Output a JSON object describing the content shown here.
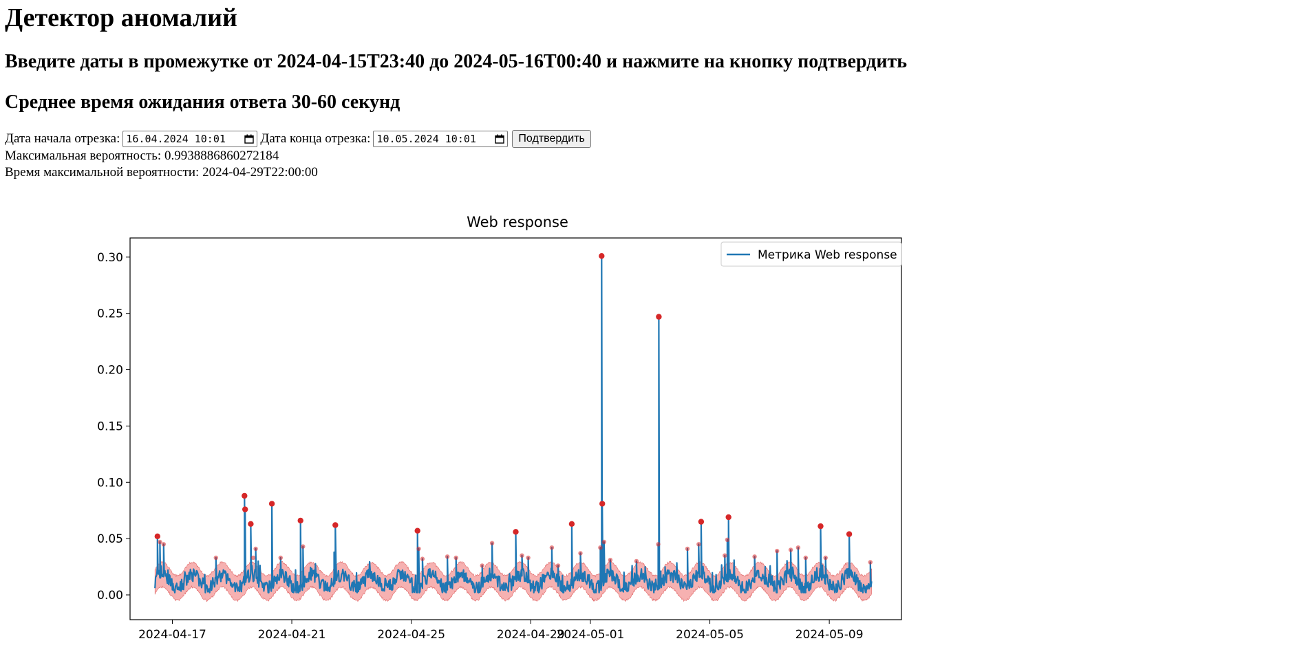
{
  "header": {
    "title": "Детектор аномалий",
    "subtitle": "Введите даты в промежутке от 2024-04-15T23:40 до 2024-05-16T00:40 и нажмите на кнопку подтвердить",
    "wait_note": "Среднее время ожидания ответа 30-60 секунд"
  },
  "form": {
    "start_label": "Дата начала отрезка:",
    "start_value": "16.04.2024 10:01",
    "end_label": "Дата конца отрезка:",
    "end_value": "10.05.2024 10:01",
    "submit_label": "Подтвердить"
  },
  "results": {
    "max_prob_label": "Максимальная вероятность:",
    "max_prob_value": "0.9938886860272184",
    "max_time_label": "Время максимальной вероятности:",
    "max_time_value": "2024-04-29T22:00:00"
  },
  "colors": {
    "line": "#1f77b4",
    "band": "#f4a3a3",
    "anomaly": "#d62728"
  },
  "chart_data": {
    "type": "line",
    "title": "Web response",
    "xlabel": "",
    "ylabel": "",
    "legend": {
      "entry": "Метрика Web response",
      "placement": "top-right"
    },
    "xlim": [
      "2024-04-15T14:00",
      "2024-05-11T10:00"
    ],
    "ylim": [
      -0.022,
      0.317
    ],
    "x_ticks": [
      "2024-04-17",
      "2024-04-21",
      "2024-04-25",
      "2024-04-29",
      "2024-05-01",
      "2024-05-05",
      "2024-05-09"
    ],
    "y_ticks": [
      "0.00",
      "0.05",
      "0.10",
      "0.15",
      "0.20",
      "0.25",
      "0.30"
    ],
    "series_range": [
      "2024-04-16T10:00",
      "2024-05-10T10:00"
    ],
    "baseline": {
      "mean": 0.012,
      "amplitude": 0.006,
      "period_days": 1,
      "band_half_width": 0.011
    },
    "spikes": [
      {
        "x": "2024-04-16T12:00",
        "y": 0.052
      },
      {
        "x": "2024-04-16T14:00",
        "y": 0.047
      },
      {
        "x": "2024-04-16T17:00",
        "y": 0.045
      },
      {
        "x": "2024-04-18T11:00",
        "y": 0.033
      },
      {
        "x": "2024-04-19T10:00",
        "y": 0.088
      },
      {
        "x": "2024-04-19T10:30",
        "y": 0.076
      },
      {
        "x": "2024-04-19T15:00",
        "y": 0.063
      },
      {
        "x": "2024-04-19T19:00",
        "y": 0.041
      },
      {
        "x": "2024-04-19T21:00",
        "y": 0.03
      },
      {
        "x": "2024-04-20T08:00",
        "y": 0.081
      },
      {
        "x": "2024-04-20T15:00",
        "y": 0.033
      },
      {
        "x": "2024-04-21T07:00",
        "y": 0.066
      },
      {
        "x": "2024-04-21T09:00",
        "y": 0.043
      },
      {
        "x": "2024-04-22T11:00",
        "y": 0.062
      },
      {
        "x": "2024-04-22T10:00",
        "y": 0.038
      },
      {
        "x": "2024-04-25T05:00",
        "y": 0.057
      },
      {
        "x": "2024-04-25T06:00",
        "y": 0.041
      },
      {
        "x": "2024-04-25T09:00",
        "y": 0.032
      },
      {
        "x": "2024-04-26T05:00",
        "y": 0.034
      },
      {
        "x": "2024-04-26T12:00",
        "y": 0.033
      },
      {
        "x": "2024-04-27T09:00",
        "y": 0.026
      },
      {
        "x": "2024-04-27T17:00",
        "y": 0.046
      },
      {
        "x": "2024-04-28T12:00",
        "y": 0.056
      },
      {
        "x": "2024-04-28T17:00",
        "y": 0.035
      },
      {
        "x": "2024-04-28T22:00",
        "y": 0.033
      },
      {
        "x": "2024-04-29T17:00",
        "y": 0.042
      },
      {
        "x": "2024-04-29T22:00",
        "y": 0.026
      },
      {
        "x": "2024-04-30T09:00",
        "y": 0.063
      },
      {
        "x": "2024-04-30T16:00",
        "y": 0.037
      },
      {
        "x": "2024-05-01T09:00",
        "y": 0.301
      },
      {
        "x": "2024-05-01T09:30",
        "y": 0.081
      },
      {
        "x": "2024-05-01T11:00",
        "y": 0.047
      },
      {
        "x": "2024-05-01T08:00",
        "y": 0.042
      },
      {
        "x": "2024-05-01T16:00",
        "y": 0.031
      },
      {
        "x": "2024-05-02T13:00",
        "y": 0.03
      },
      {
        "x": "2024-05-02T20:00",
        "y": 0.025
      },
      {
        "x": "2024-05-03T07:00",
        "y": 0.247
      },
      {
        "x": "2024-05-03T06:30",
        "y": 0.045
      },
      {
        "x": "2024-05-03T12:00",
        "y": 0.025
      },
      {
        "x": "2024-05-04T06:00",
        "y": 0.041
      },
      {
        "x": "2024-05-04T17:00",
        "y": 0.065
      },
      {
        "x": "2024-05-04T15:00",
        "y": 0.045
      },
      {
        "x": "2024-05-05T15:00",
        "y": 0.069
      },
      {
        "x": "2024-05-05T14:00",
        "y": 0.049
      },
      {
        "x": "2024-05-05T12:00",
        "y": 0.035
      },
      {
        "x": "2024-05-06T12:00",
        "y": 0.034
      },
      {
        "x": "2024-05-07T06:00",
        "y": 0.039
      },
      {
        "x": "2024-05-07T17:00",
        "y": 0.04
      },
      {
        "x": "2024-05-07T23:00",
        "y": 0.042
      },
      {
        "x": "2024-05-08T05:00",
        "y": 0.033
      },
      {
        "x": "2024-05-08T17:00",
        "y": 0.061
      },
      {
        "x": "2024-05-08T21:00",
        "y": 0.033
      },
      {
        "x": "2024-05-09T16:00",
        "y": 0.054
      },
      {
        "x": "2024-05-10T09:00",
        "y": 0.029
      }
    ],
    "anomaly_points": [
      {
        "x": "2024-04-16T12:00",
        "y": 0.052
      },
      {
        "x": "2024-04-16T14:00",
        "y": 0.047
      },
      {
        "x": "2024-04-16T17:00",
        "y": 0.045
      },
      {
        "x": "2024-04-18T11:00",
        "y": 0.033
      },
      {
        "x": "2024-04-19T10:00",
        "y": 0.088
      },
      {
        "x": "2024-04-19T10:30",
        "y": 0.076
      },
      {
        "x": "2024-04-19T15:00",
        "y": 0.063
      },
      {
        "x": "2024-04-19T19:00",
        "y": 0.041
      },
      {
        "x": "2024-04-19T17:00",
        "y": 0.033
      },
      {
        "x": "2024-04-20T08:00",
        "y": 0.081
      },
      {
        "x": "2024-04-20T15:00",
        "y": 0.033
      },
      {
        "x": "2024-04-21T07:00",
        "y": 0.066
      },
      {
        "x": "2024-04-21T09:00",
        "y": 0.043
      },
      {
        "x": "2024-04-22T11:00",
        "y": 0.062
      },
      {
        "x": "2024-04-25T05:00",
        "y": 0.057
      },
      {
        "x": "2024-04-25T06:00",
        "y": 0.041
      },
      {
        "x": "2024-04-25T09:00",
        "y": 0.032
      },
      {
        "x": "2024-04-26T05:00",
        "y": 0.034
      },
      {
        "x": "2024-04-26T12:00",
        "y": 0.033
      },
      {
        "x": "2024-04-27T09:00",
        "y": 0.026
      },
      {
        "x": "2024-04-27T17:00",
        "y": 0.046
      },
      {
        "x": "2024-04-28T12:00",
        "y": 0.056
      },
      {
        "x": "2024-04-28T17:00",
        "y": 0.035
      },
      {
        "x": "2024-04-28T22:00",
        "y": 0.033
      },
      {
        "x": "2024-04-29T17:00",
        "y": 0.042
      },
      {
        "x": "2024-04-29T22:00",
        "y": 0.026
      },
      {
        "x": "2024-04-30T09:00",
        "y": 0.063
      },
      {
        "x": "2024-04-30T16:00",
        "y": 0.037
      },
      {
        "x": "2024-05-01T09:00",
        "y": 0.301
      },
      {
        "x": "2024-05-01T09:30",
        "y": 0.081
      },
      {
        "x": "2024-05-01T11:00",
        "y": 0.047
      },
      {
        "x": "2024-05-01T08:00",
        "y": 0.042
      },
      {
        "x": "2024-05-01T16:00",
        "y": 0.031
      },
      {
        "x": "2024-05-02T13:00",
        "y": 0.03
      },
      {
        "x": "2024-05-03T07:00",
        "y": 0.247
      },
      {
        "x": "2024-05-03T06:30",
        "y": 0.045
      },
      {
        "x": "2024-05-04T06:00",
        "y": 0.041
      },
      {
        "x": "2024-05-04T17:00",
        "y": 0.065
      },
      {
        "x": "2024-05-04T15:00",
        "y": 0.045
      },
      {
        "x": "2024-05-05T15:00",
        "y": 0.069
      },
      {
        "x": "2024-05-05T14:00",
        "y": 0.049
      },
      {
        "x": "2024-05-05T12:00",
        "y": 0.035
      },
      {
        "x": "2024-05-06T12:00",
        "y": 0.034
      },
      {
        "x": "2024-05-07T06:00",
        "y": 0.039
      },
      {
        "x": "2024-05-07T17:00",
        "y": 0.04
      },
      {
        "x": "2024-05-07T23:00",
        "y": 0.042
      },
      {
        "x": "2024-05-08T05:00",
        "y": 0.033
      },
      {
        "x": "2024-05-08T17:00",
        "y": 0.061
      },
      {
        "x": "2024-05-08T21:00",
        "y": 0.033
      },
      {
        "x": "2024-05-09T16:00",
        "y": 0.054
      },
      {
        "x": "2024-05-10T09:00",
        "y": 0.029
      }
    ]
  }
}
